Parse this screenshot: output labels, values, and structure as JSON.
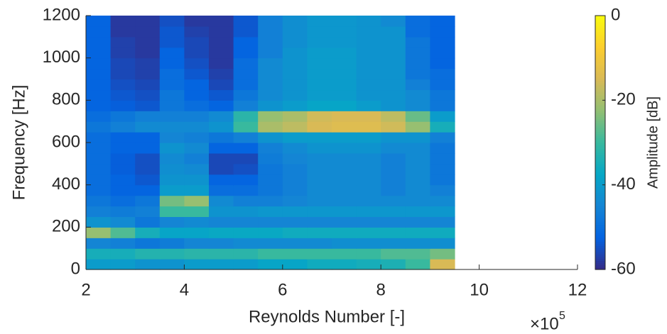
{
  "chart_data": {
    "type": "heatmap",
    "xlabel": "Reynolds Number [-]",
    "ylabel": "Frequency [Hz]",
    "x_multiplier": "×10",
    "x_multiplier_exponent": "5",
    "colorbar_label": "Amplitude [dB]",
    "colormap": "parula",
    "xlim": [
      2,
      12
    ],
    "xticks": [
      2,
      4,
      6,
      8,
      10,
      12
    ],
    "ylim": [
      0,
      1200
    ],
    "yticks": [
      0,
      200,
      400,
      600,
      800,
      1000,
      1200
    ],
    "clim": [
      -60,
      0
    ],
    "cticks": [
      -60,
      -40,
      -20,
      0
    ],
    "x_edges": [
      2,
      2.5,
      3,
      3.5,
      4,
      4.5,
      5,
      5.5,
      6,
      6.5,
      7,
      7.5,
      8,
      8.5,
      9,
      9.5
    ],
    "y_edges": [
      0,
      50,
      100,
      150,
      200,
      250,
      300,
      350,
      400,
      450,
      500,
      550,
      600,
      650,
      700,
      750,
      800,
      850,
      900,
      950,
      1000,
      1050,
      1100,
      1150,
      1200
    ],
    "z": [
      [
        -40,
        -40,
        -42,
        -42,
        -40,
        -40,
        -40,
        -38,
        -38,
        -36,
        -36,
        -35,
        -34,
        -30,
        -15
      ],
      [
        -35,
        -35,
        -33,
        -33,
        -32,
        -32,
        -32,
        -30,
        -30,
        -30,
        -30,
        -30,
        -28,
        -28,
        -25
      ],
      [
        -45,
        -46,
        -48,
        -47,
        -45,
        -45,
        -44,
        -44,
        -44,
        -44,
        -43,
        -43,
        -43,
        -43,
        -43
      ],
      [
        -22,
        -28,
        -35,
        -38,
        -38,
        -37,
        -37,
        -37,
        -36,
        -36,
        -36,
        -36,
        -36,
        -36,
        -36
      ],
      [
        -42,
        -44,
        -48,
        -45,
        -44,
        -45,
        -45,
        -45,
        -45,
        -45,
        -45,
        -45,
        -45,
        -45,
        -45
      ],
      [
        -46,
        -47,
        -46,
        -30,
        -30,
        -42,
        -42,
        -41,
        -41,
        -41,
        -41,
        -41,
        -41,
        -41,
        -41
      ],
      [
        -48,
        -50,
        -48,
        -25,
        -22,
        -44,
        -46,
        -46,
        -45,
        -44,
        -44,
        -44,
        -44,
        -44,
        -44
      ],
      [
        -50,
        -52,
        -52,
        -40,
        -40,
        -50,
        -50,
        -48,
        -46,
        -44,
        -44,
        -44,
        -46,
        -44,
        -46
      ],
      [
        -50,
        -52,
        -54,
        -42,
        -42,
        -52,
        -52,
        -48,
        -46,
        -44,
        -44,
        -44,
        -46,
        -44,
        -48
      ],
      [
        -50,
        -53,
        -55,
        -43,
        -44,
        -56,
        -55,
        -48,
        -46,
        -44,
        -44,
        -44,
        -46,
        -44,
        -48
      ],
      [
        -50,
        -53,
        -55,
        -44,
        -46,
        -56,
        -56,
        -47,
        -45,
        -44,
        -44,
        -44,
        -46,
        -44,
        -48
      ],
      [
        -50,
        -52,
        -52,
        -42,
        -44,
        -52,
        -52,
        -46,
        -44,
        -42,
        -42,
        -42,
        -44,
        -44,
        -48
      ],
      [
        -50,
        -52,
        -52,
        -45,
        -46,
        -48,
        -46,
        -42,
        -40,
        -40,
        -40,
        -40,
        -42,
        -42,
        -46
      ],
      [
        -48,
        -46,
        -44,
        -44,
        -44,
        -42,
        -30,
        -20,
        -18,
        -15,
        -14,
        -14,
        -16,
        -22,
        -35
      ],
      [
        -50,
        -48,
        -46,
        -46,
        -46,
        -44,
        -32,
        -22,
        -20,
        -16,
        -15,
        -15,
        -18,
        -26,
        -40
      ],
      [
        -52,
        -53,
        -54,
        -48,
        -50,
        -52,
        -46,
        -42,
        -40,
        -38,
        -38,
        -40,
        -42,
        -44,
        -48
      ],
      [
        -52,
        -54,
        -55,
        -48,
        -52,
        -54,
        -48,
        -44,
        -42,
        -40,
        -40,
        -42,
        -42,
        -44,
        -48
      ],
      [
        -52,
        -55,
        -56,
        -50,
        -52,
        -56,
        -50,
        -44,
        -42,
        -40,
        -40,
        -42,
        -42,
        -46,
        -50
      ],
      [
        -52,
        -56,
        -57,
        -50,
        -54,
        -57,
        -50,
        -44,
        -42,
        -40,
        -40,
        -42,
        -42,
        -48,
        -50
      ],
      [
        -52,
        -56,
        -57,
        -52,
        -55,
        -58,
        -50,
        -44,
        -42,
        -40,
        -40,
        -42,
        -42,
        -48,
        -52
      ],
      [
        -52,
        -57,
        -58,
        -52,
        -56,
        -58,
        -52,
        -46,
        -42,
        -40,
        -40,
        -42,
        -42,
        -48,
        -52
      ],
      [
        -52,
        -57,
        -58,
        -54,
        -56,
        -58,
        -52,
        -46,
        -43,
        -41,
        -41,
        -42,
        -42,
        -48,
        -52
      ],
      [
        -52,
        -58,
        -58,
        -54,
        -57,
        -58,
        -54,
        -46,
        -43,
        -41,
        -41,
        -42,
        -42,
        -50,
        -52
      ],
      [
        -52,
        -58,
        -58,
        -55,
        -58,
        -58,
        -54,
        -46,
        -43,
        -41,
        -41,
        -42,
        -44,
        -50,
        -52
      ]
    ]
  }
}
